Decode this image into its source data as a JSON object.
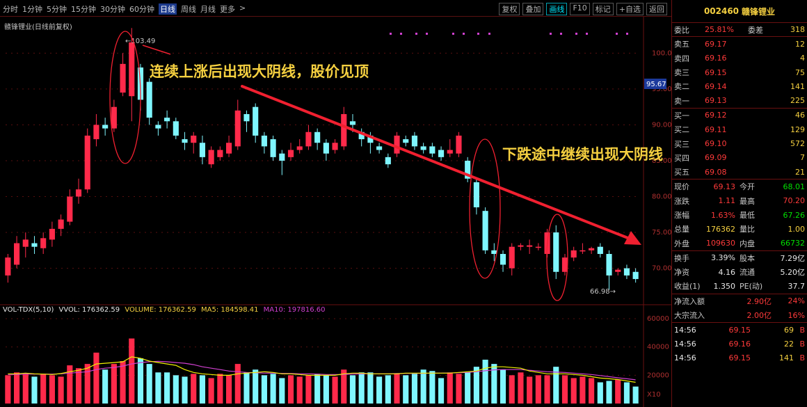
{
  "toolbar": {
    "periods": [
      "分时",
      "1分钟",
      "5分钟",
      "15分钟",
      "30分钟",
      "60分钟",
      "日线",
      "周线",
      "月线",
      "更多"
    ],
    "active_period": 6,
    "more_arrow": ">",
    "buttons": [
      "复权",
      "叠加",
      "画线",
      "F10",
      "标记",
      "+自选",
      "返回"
    ],
    "active_button": 2
  },
  "chart_title": "赣锋锂业(日线前复权)",
  "annotations": {
    "top": "连续上涨后出现大阴线，股价见顶",
    "middle": "下跌途中继续出现大阴线"
  },
  "price_axis": {
    "ticks": [
      "100.0",
      "95.00",
      "90.00",
      "85.00",
      "80.00",
      "75.00",
      "70.00"
    ],
    "current_tag": "95.67",
    "high_label": "103.49",
    "low_label": "66.98"
  },
  "volume_axis": {
    "ticks": [
      "60000",
      "40000",
      "20000"
    ],
    "unit": "X10"
  },
  "volume_legend": {
    "indicator": "VOL-TDX(5,10)",
    "vvol": "VVOL: 176362.59",
    "volume": "VOLUME: 176362.59",
    "ma5": "MA5: 184598.41",
    "ma10": "MA10: 197816.60"
  },
  "colors": {
    "up": "#ff2a4a",
    "down": "#7ff6ff",
    "ma5": "#f0f000",
    "ma10": "#d040d0",
    "arrow": "#f02030",
    "annotation": "#f5d040"
  },
  "candles": [
    {
      "o": 69.0,
      "c": 71.5,
      "h": 72.0,
      "l": 68.0
    },
    {
      "o": 70.5,
      "c": 73.5,
      "h": 74.5,
      "l": 70.0
    },
    {
      "o": 73.0,
      "c": 74.0,
      "h": 75.0,
      "l": 71.5
    },
    {
      "o": 73.5,
      "c": 73.0,
      "h": 74.5,
      "l": 72.0
    },
    {
      "o": 72.8,
      "c": 74.2,
      "h": 75.0,
      "l": 72.0
    },
    {
      "o": 74.0,
      "c": 75.5,
      "h": 76.5,
      "l": 73.0
    },
    {
      "o": 75.5,
      "c": 76.8,
      "h": 77.5,
      "l": 74.5
    },
    {
      "o": 76.5,
      "c": 80.0,
      "h": 81.0,
      "l": 76.0
    },
    {
      "o": 80.0,
      "c": 81.0,
      "h": 82.5,
      "l": 79.0
    },
    {
      "o": 81.0,
      "c": 88.5,
      "h": 89.5,
      "l": 80.5
    },
    {
      "o": 88.0,
      "c": 90.0,
      "h": 91.5,
      "l": 87.0
    },
    {
      "o": 90.0,
      "c": 89.5,
      "h": 91.0,
      "l": 88.5
    },
    {
      "o": 89.5,
      "c": 92.5,
      "h": 93.5,
      "l": 89.0
    },
    {
      "o": 94.5,
      "c": 98.5,
      "h": 100.0,
      "l": 94.0
    },
    {
      "o": 94.0,
      "c": 101.5,
      "h": 103.5,
      "l": 90.5
    },
    {
      "o": 98.0,
      "c": 93.5,
      "h": 98.5,
      "l": 92.0
    },
    {
      "o": 96.0,
      "c": 91.0,
      "h": 96.5,
      "l": 90.0
    },
    {
      "o": 90.0,
      "c": 89.5,
      "h": 90.5,
      "l": 88.5
    },
    {
      "o": 91.0,
      "c": 90.5,
      "h": 92.0,
      "l": 89.5
    },
    {
      "o": 90.5,
      "c": 88.5,
      "h": 91.0,
      "l": 88.0
    },
    {
      "o": 88.0,
      "c": 87.5,
      "h": 89.0,
      "l": 86.5
    },
    {
      "o": 87.5,
      "c": 88.5,
      "h": 89.0,
      "l": 86.0
    },
    {
      "o": 87.5,
      "c": 85.5,
      "h": 88.5,
      "l": 84.5
    },
    {
      "o": 84.5,
      "c": 86.5,
      "h": 87.0,
      "l": 84.0
    },
    {
      "o": 85.5,
      "c": 86.5,
      "h": 87.0,
      "l": 85.0
    },
    {
      "o": 86.0,
      "c": 87.5,
      "h": 88.5,
      "l": 85.5
    },
    {
      "o": 87.0,
      "c": 92.0,
      "h": 93.5,
      "l": 86.5
    },
    {
      "o": 91.5,
      "c": 90.5,
      "h": 92.0,
      "l": 89.0
    },
    {
      "o": 92.5,
      "c": 88.5,
      "h": 93.0,
      "l": 87.5
    },
    {
      "o": 88.5,
      "c": 87.0,
      "h": 89.0,
      "l": 86.0
    },
    {
      "o": 88.0,
      "c": 85.5,
      "h": 88.5,
      "l": 85.0
    },
    {
      "o": 86.0,
      "c": 85.0,
      "h": 86.5,
      "l": 83.0
    },
    {
      "o": 85.5,
      "c": 86.5,
      "h": 87.5,
      "l": 85.0
    },
    {
      "o": 86.5,
      "c": 87.0,
      "h": 88.0,
      "l": 86.0
    },
    {
      "o": 87.0,
      "c": 89.0,
      "h": 90.0,
      "l": 86.5
    },
    {
      "o": 89.0,
      "c": 87.5,
      "h": 89.5,
      "l": 86.5
    },
    {
      "o": 87.5,
      "c": 86.0,
      "h": 88.0,
      "l": 85.0
    },
    {
      "o": 86.5,
      "c": 87.5,
      "h": 88.0,
      "l": 86.0
    },
    {
      "o": 87.0,
      "c": 91.5,
      "h": 92.5,
      "l": 86.5
    },
    {
      "o": 90.5,
      "c": 90.0,
      "h": 91.5,
      "l": 89.0
    },
    {
      "o": 89.0,
      "c": 88.0,
      "h": 89.5,
      "l": 87.0
    },
    {
      "o": 88.5,
      "c": 87.5,
      "h": 89.0,
      "l": 86.0
    },
    {
      "o": 87.0,
      "c": 86.5,
      "h": 87.5,
      "l": 86.0
    },
    {
      "o": 85.5,
      "c": 84.5,
      "h": 86.0,
      "l": 84.0
    },
    {
      "o": 86.0,
      "c": 88.5,
      "h": 89.0,
      "l": 85.5
    },
    {
      "o": 88.0,
      "c": 87.5,
      "h": 88.5,
      "l": 87.0
    },
    {
      "o": 88.5,
      "c": 87.0,
      "h": 89.0,
      "l": 86.5
    },
    {
      "o": 87.0,
      "c": 86.5,
      "h": 87.5,
      "l": 86.0
    },
    {
      "o": 87.0,
      "c": 86.0,
      "h": 87.5,
      "l": 85.5
    },
    {
      "o": 86.5,
      "c": 85.5,
      "h": 87.0,
      "l": 85.0
    },
    {
      "o": 86.0,
      "c": 86.5,
      "h": 88.0,
      "l": 85.5
    },
    {
      "o": 86.0,
      "c": 88.5,
      "h": 89.0,
      "l": 85.5
    },
    {
      "o": 85.0,
      "c": 82.5,
      "h": 85.5,
      "l": 82.0
    },
    {
      "o": 82.0,
      "c": 78.5,
      "h": 82.5,
      "l": 77.5
    },
    {
      "o": 78.0,
      "c": 72.5,
      "h": 78.5,
      "l": 72.0
    },
    {
      "o": 72.5,
      "c": 72.0,
      "h": 73.5,
      "l": 71.0
    },
    {
      "o": 72.0,
      "c": 70.5,
      "h": 72.5,
      "l": 69.5
    },
    {
      "o": 70.0,
      "c": 73.0,
      "h": 73.5,
      "l": 69.0
    },
    {
      "o": 73.0,
      "c": 73.2,
      "h": 73.5,
      "l": 72.5
    },
    {
      "o": 73.0,
      "c": 73.2,
      "h": 74.0,
      "l": 72.0
    },
    {
      "o": 73.0,
      "c": 73.0,
      "h": 73.5,
      "l": 72.5
    },
    {
      "o": 72.0,
      "c": 75.0,
      "h": 75.5,
      "l": 71.5
    },
    {
      "o": 75.0,
      "c": 69.5,
      "h": 76.0,
      "l": 68.5
    },
    {
      "o": 69.5,
      "c": 71.5,
      "h": 72.0,
      "l": 69.0
    },
    {
      "o": 71.5,
      "c": 72.5,
      "h": 73.0,
      "l": 71.0
    },
    {
      "o": 72.5,
      "c": 72.5,
      "h": 73.5,
      "l": 72.0
    },
    {
      "o": 72.5,
      "c": 72.8,
      "h": 73.0,
      "l": 72.0
    },
    {
      "o": 73.0,
      "c": 72.0,
      "h": 73.5,
      "l": 71.5
    },
    {
      "o": 72.0,
      "c": 69.0,
      "h": 72.5,
      "l": 67.0
    },
    {
      "o": 69.5,
      "c": 69.8,
      "h": 70.0,
      "l": 69.0
    },
    {
      "o": 70.0,
      "c": 69.0,
      "h": 70.5,
      "l": 68.5
    },
    {
      "o": 69.5,
      "c": 68.5,
      "h": 70.0,
      "l": 68.0
    }
  ],
  "volumes": [
    20000,
    22000,
    21000,
    19000,
    21000,
    20000,
    19000,
    27000,
    25000,
    28000,
    36000,
    24000,
    28000,
    30000,
    46000,
    32000,
    28000,
    22000,
    22000,
    20000,
    19000,
    21000,
    20000,
    18000,
    21000,
    20000,
    28000,
    22000,
    24000,
    20000,
    21000,
    18000,
    20000,
    19000,
    20000,
    21000,
    20000,
    19000,
    24000,
    20000,
    22000,
    22000,
    19000,
    20000,
    21000,
    20000,
    21000,
    24000,
    23000,
    18000,
    22000,
    21000,
    22000,
    26000,
    31000,
    28000,
    24000,
    20000,
    22000,
    19000,
    20000,
    20000,
    26000,
    20000,
    18000,
    19000,
    18000,
    15000,
    16000,
    17000,
    15000,
    12000
  ],
  "ma5": [
    21000,
    21000,
    21500,
    21000,
    20800,
    20500,
    21200,
    22500,
    23500,
    25000,
    28000,
    28500,
    29000,
    29500,
    33000,
    32000,
    30000,
    29000,
    28000,
    27000,
    24000,
    22000,
    21000,
    20500,
    20000,
    20000,
    21000,
    21500,
    22000,
    22500,
    22000,
    21000,
    21000,
    20500,
    20000,
    20000,
    20000,
    20000,
    21000,
    21500,
    21500,
    21000,
    21000,
    21000,
    21000,
    21500,
    21500,
    21500,
    21500,
    21500,
    21500,
    22000,
    22500,
    23000,
    25000,
    26000,
    26000,
    25500,
    25000,
    23000,
    22000,
    21000,
    21000,
    21000,
    20500,
    20000,
    19000,
    18000,
    17500,
    17000,
    16000,
    15000
  ],
  "ma10": [
    20500,
    20500,
    20800,
    20800,
    20800,
    20800,
    21000,
    21500,
    22000,
    22500,
    24000,
    25000,
    25500,
    26500,
    28000,
    29000,
    29500,
    29800,
    29500,
    29000,
    28500,
    27500,
    26000,
    25000,
    24000,
    23000,
    22500,
    22000,
    21800,
    21500,
    21500,
    21300,
    21200,
    21000,
    21000,
    20800,
    20500,
    20500,
    20500,
    20800,
    21000,
    21000,
    21000,
    21000,
    21200,
    21300,
    21300,
    21300,
    21500,
    21500,
    21600,
    21800,
    22000,
    22500,
    23200,
    23800,
    24000,
    24000,
    24000,
    23500,
    23000,
    22500,
    22200,
    22000,
    21500,
    21000,
    20500,
    19800,
    19000,
    18200,
    17500,
    16800
  ],
  "right_panel": {
    "stock_code": "002460",
    "stock_name": "赣锋锂业",
    "wb": {
      "label": "委比",
      "value": "25.81%",
      "label2": "委差",
      "value2": "318"
    },
    "asks": [
      {
        "label": "卖五",
        "price": "69.17",
        "qty": "12"
      },
      {
        "label": "卖四",
        "price": "69.16",
        "qty": "4"
      },
      {
        "label": "卖三",
        "price": "69.15",
        "qty": "75"
      },
      {
        "label": "卖二",
        "price": "69.14",
        "qty": "141"
      },
      {
        "label": "卖一",
        "price": "69.13",
        "qty": "225"
      }
    ],
    "bids": [
      {
        "label": "买一",
        "price": "69.12",
        "qty": "46"
      },
      {
        "label": "买二",
        "price": "69.11",
        "qty": "129"
      },
      {
        "label": "买三",
        "price": "69.10",
        "qty": "572"
      },
      {
        "label": "买四",
        "price": "69.09",
        "qty": "7"
      },
      {
        "label": "买五",
        "price": "69.08",
        "qty": "21"
      }
    ],
    "quote": [
      {
        "l1": "现价",
        "v1": "69.13",
        "c1": "red",
        "l2": "今开",
        "v2": "68.01",
        "c2": "green"
      },
      {
        "l1": "涨跌",
        "v1": "1.11",
        "c1": "red",
        "l2": "最高",
        "v2": "70.20",
        "c2": "red"
      },
      {
        "l1": "涨幅",
        "v1": "1.63%",
        "c1": "red",
        "l2": "最低",
        "v2": "67.26",
        "c2": "green"
      },
      {
        "l1": "总量",
        "v1": "176362",
        "c1": "yellow",
        "l2": "量比",
        "v2": "1.00",
        "c2": "yellow"
      },
      {
        "l1": "外盘",
        "v1": "109630",
        "c1": "red",
        "l2": "内盘",
        "v2": "66732",
        "c2": "green"
      }
    ],
    "fund": [
      {
        "l1": "换手",
        "v1": "3.39%",
        "l2": "股本",
        "v2": "7.29亿"
      },
      {
        "l1": "净资",
        "v1": "4.16",
        "l2": "流通",
        "v2": "5.20亿"
      },
      {
        "l1": "收益(1)",
        "v1": "1.350",
        "l2": "PE(动)",
        "v2": "37.7"
      }
    ],
    "flows": [
      {
        "label": "净流入额",
        "value": "2.90亿",
        "pct": "24%"
      },
      {
        "label": "大宗流入",
        "value": "2.00亿",
        "pct": "16%"
      }
    ],
    "trades": [
      {
        "time": "14:56",
        "price": "69.15",
        "qty": "69",
        "dir": "B"
      },
      {
        "time": "14:56",
        "price": "69.16",
        "qty": "22",
        "dir": "B"
      },
      {
        "time": "14:56",
        "price": "69.15",
        "qty": "141",
        "dir": "B"
      }
    ]
  }
}
